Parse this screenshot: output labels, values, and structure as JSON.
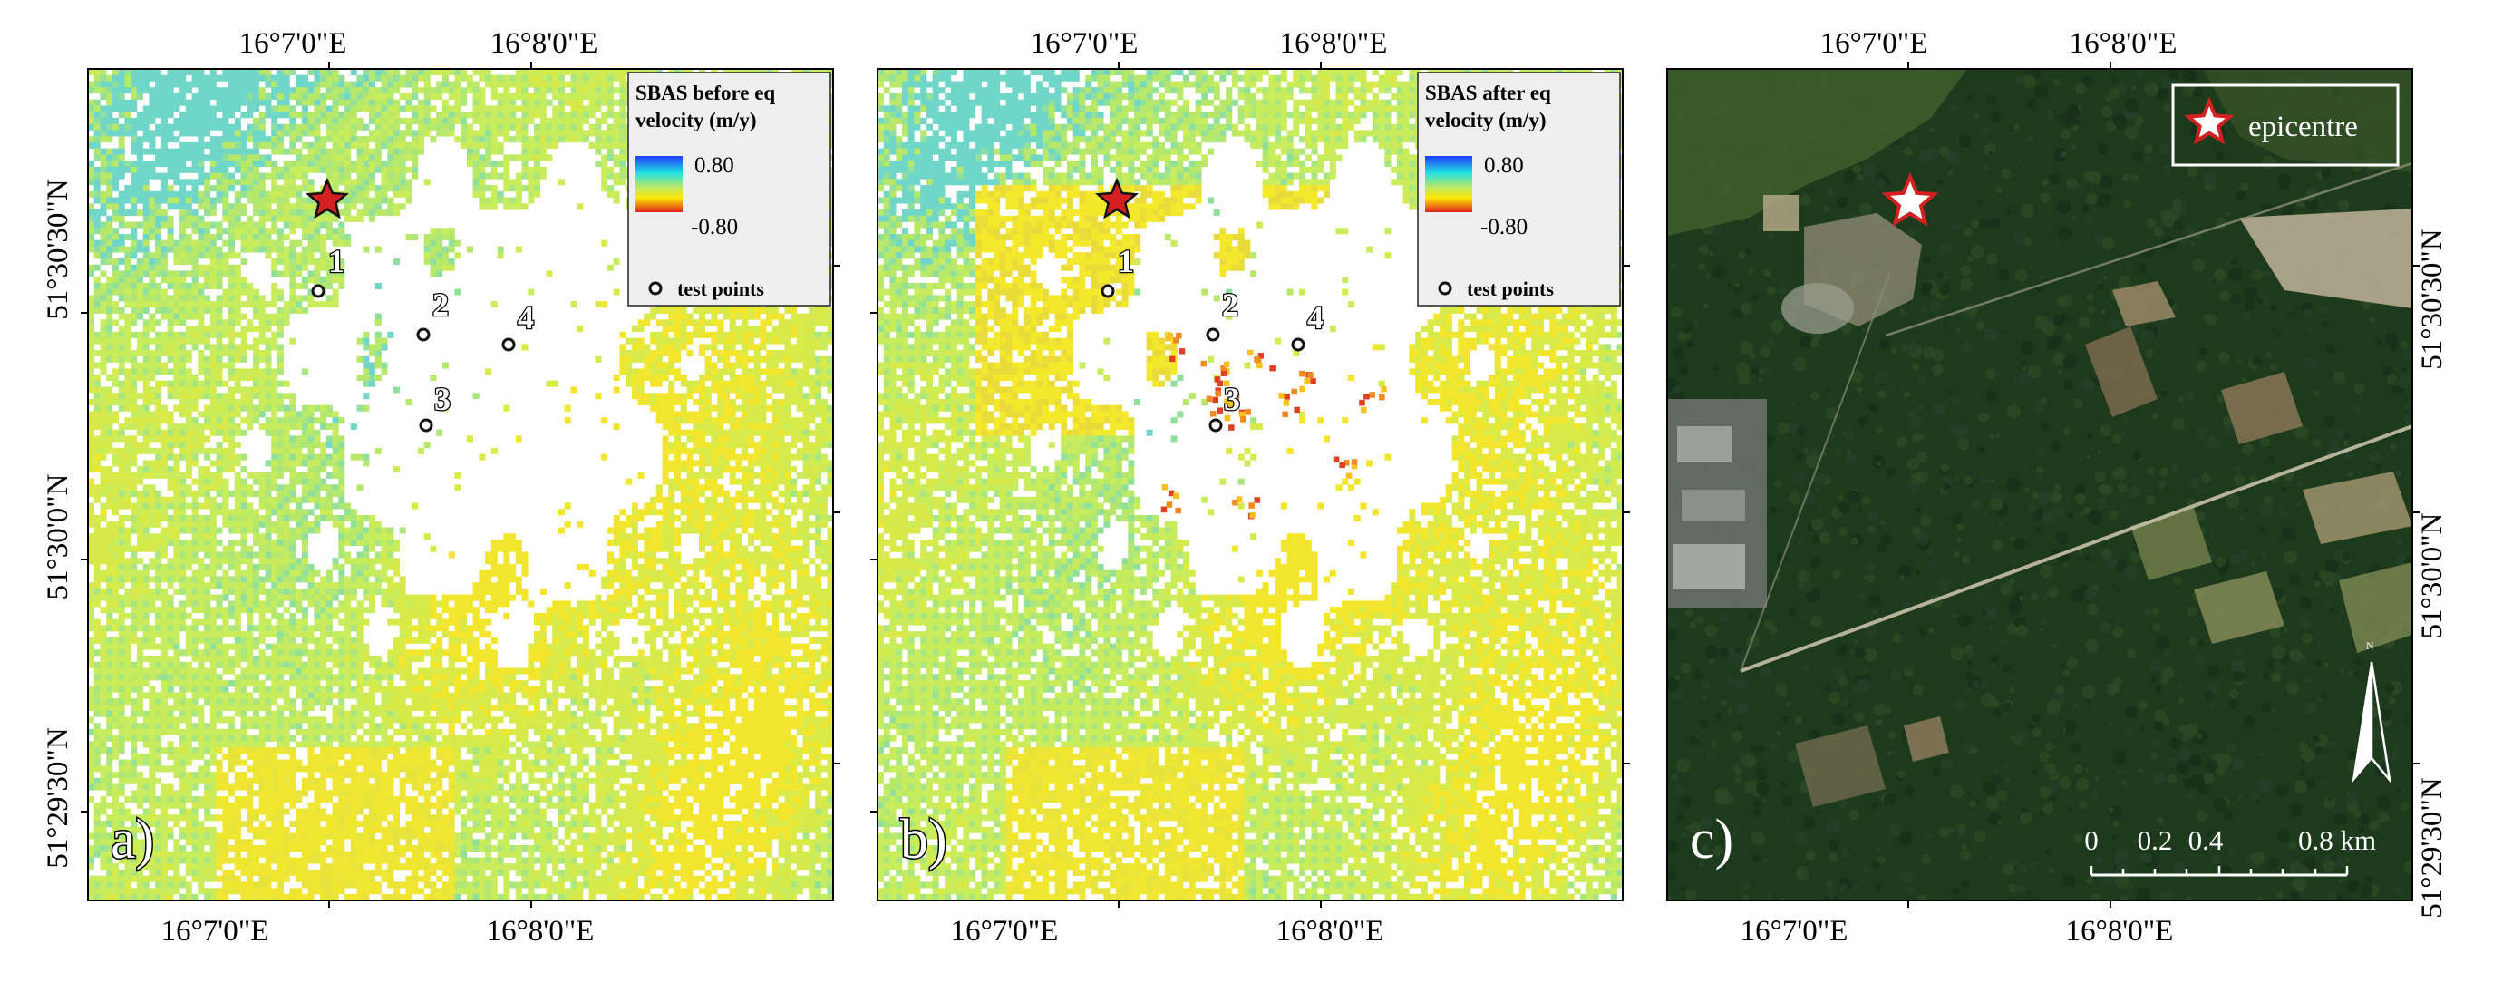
{
  "figure": {
    "panels": [
      {
        "id": "a",
        "label": "a)",
        "top_ticks": [
          "16°7'0\"E",
          "16°8'0\"E"
        ],
        "bottom_ticks": [
          "16°7'0\"E",
          "16°8'0\"E"
        ],
        "left_ticks": [
          "51°30'30\"N",
          "51°30'0\"N",
          "51°29'30\"N"
        ],
        "legend": {
          "title_line1": "SBAS before eq",
          "title_line2": "velocity (m/y)",
          "max": "0.80",
          "min": "-0.80",
          "points_label": "test points"
        },
        "points": [
          "1",
          "2",
          "3",
          "4"
        ]
      },
      {
        "id": "b",
        "label": "b)",
        "top_ticks": [
          "16°7'0\"E",
          "16°8'0\"E"
        ],
        "bottom_ticks": [
          "16°7'0\"E",
          "16°8'0\"E"
        ],
        "legend": {
          "title_line1": "SBAS after eq",
          "title_line2": "velocity (m/y)",
          "max": "0.80",
          "min": "-0.80",
          "points_label": "test points"
        },
        "points": [
          "1",
          "2",
          "3",
          "4"
        ]
      },
      {
        "id": "c",
        "label": "c)",
        "top_ticks": [
          "16°7'0\"E",
          "16°8'0\"E"
        ],
        "bottom_ticks": [
          "16°7'0\"E",
          "16°8'0\"E"
        ],
        "right_ticks": [
          "51°30'30\"N",
          "51°30'0\"N",
          "51°29'30\"N"
        ],
        "legend": {
          "epicentre_label": "epicentre"
        },
        "north_label": "N",
        "scalebar": {
          "labels": [
            "0",
            "0.2",
            "0.4",
            "0.8 km"
          ]
        }
      }
    ],
    "colors": {
      "velocity_high": "#1f3cff",
      "velocity_mid_high": "#20e0e0",
      "velocity_mid": "#b8e86a",
      "velocity_mid_low": "#ffe800",
      "velocity_low": "#e02020",
      "star": "#d42020",
      "forest": "#1e3a1c"
    }
  }
}
